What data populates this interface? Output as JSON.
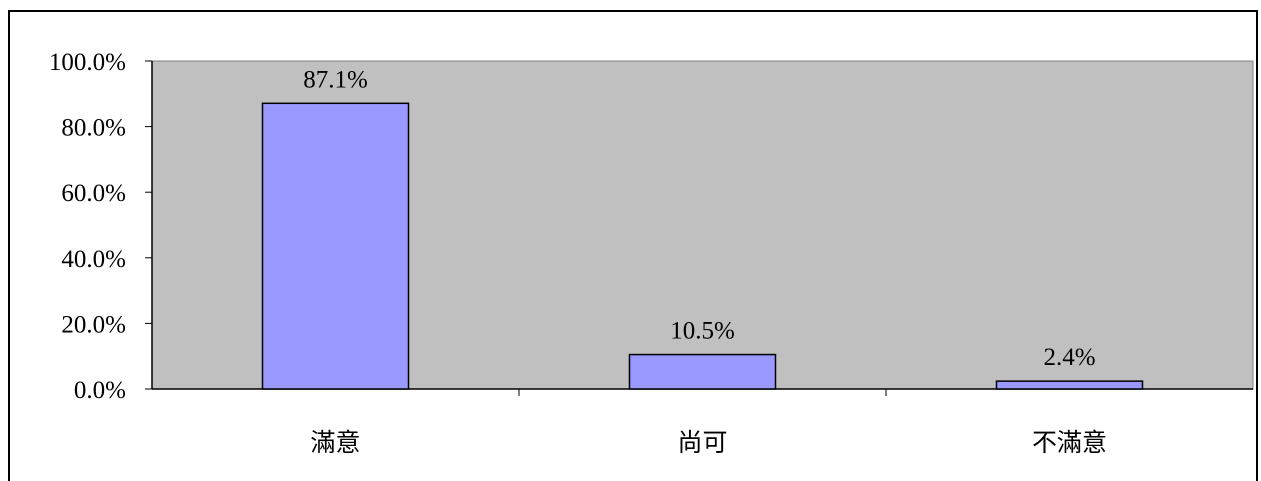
{
  "chart_data": {
    "type": "bar",
    "categories": [
      "滿意",
      "尚可",
      "不滿意"
    ],
    "values": [
      87.1,
      10.5,
      2.4
    ],
    "data_labels": [
      "87.1%",
      "10.5%",
      "2.4%"
    ],
    "yticks": [
      "0.0%",
      "20.0%",
      "40.0%",
      "60.0%",
      "80.0%",
      "100.0%"
    ],
    "ylim": [
      0,
      100
    ],
    "grid": false,
    "legend": "none",
    "colors": {
      "plot_background": "#c0c0c0",
      "bar_fill": "#9999ff",
      "bar_stroke": "#000000"
    }
  }
}
